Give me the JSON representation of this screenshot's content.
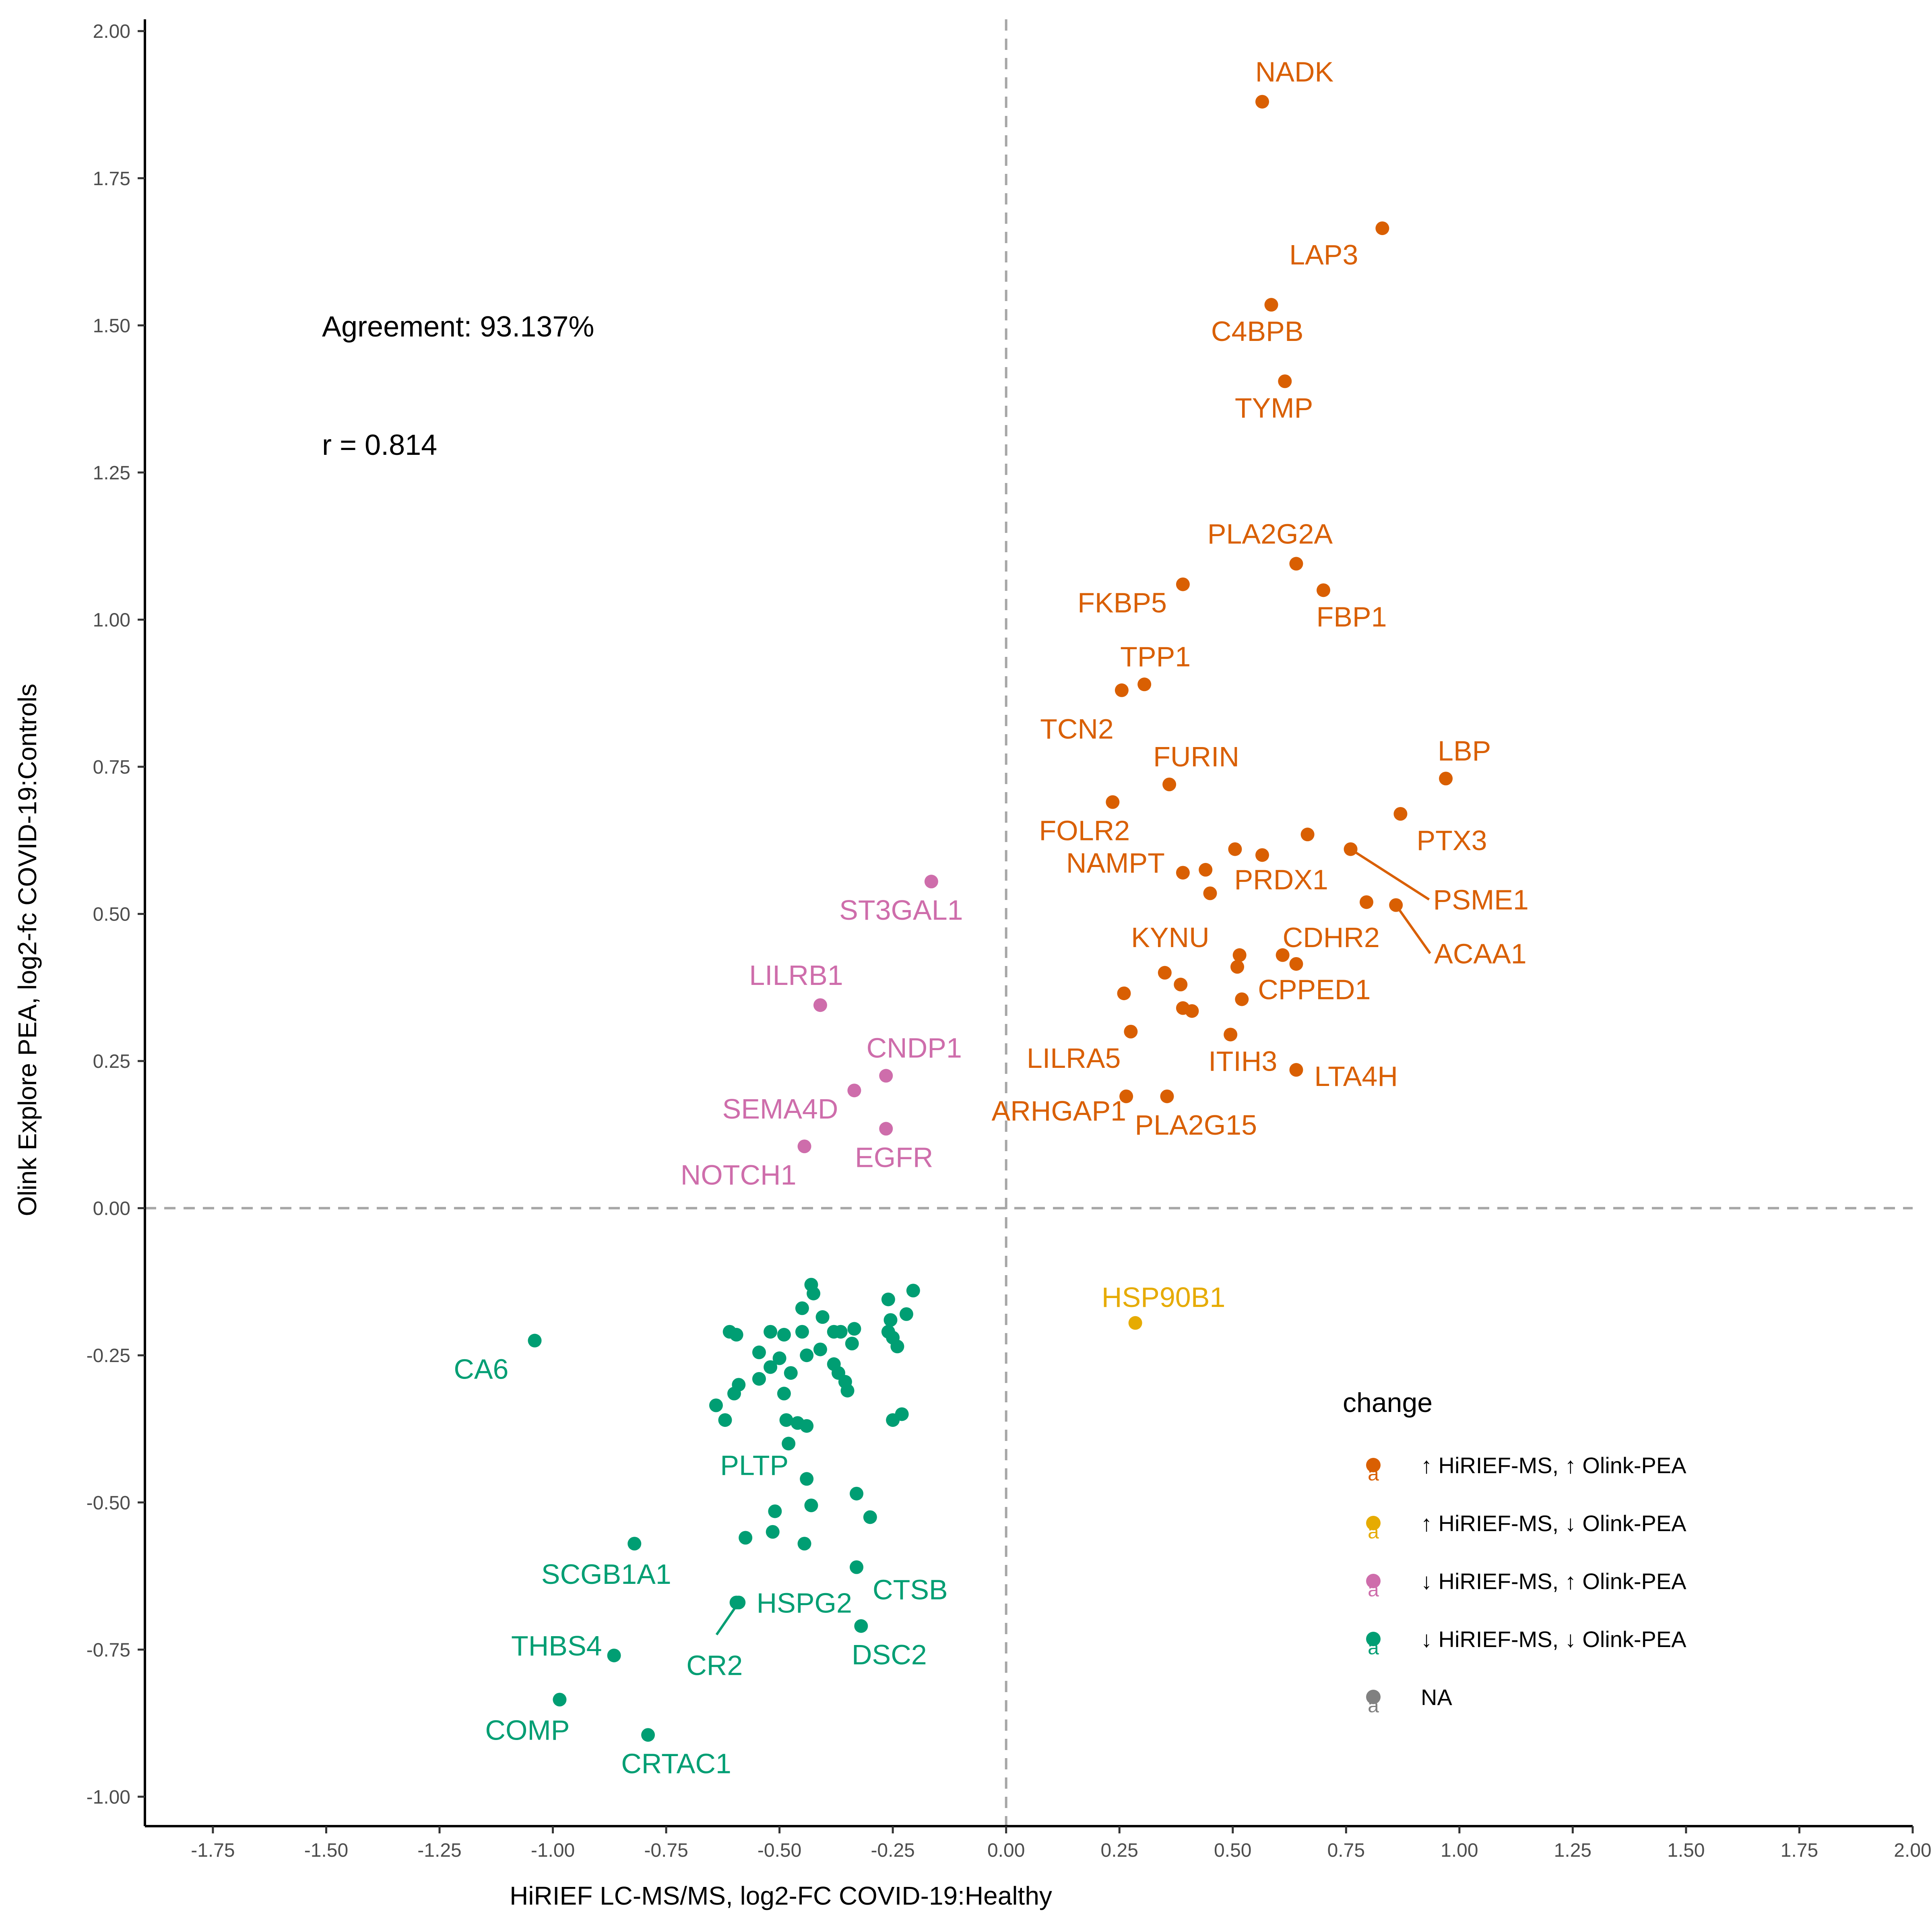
{
  "chart_data": {
    "type": "scatter",
    "xlabel": "HiRIEF LC-MS/MS, log2-FC COVID-19:Healthy",
    "ylabel": "Olink Explore PEA, log2-fc COVID-19:Controls",
    "xlim": [
      -1.9,
      2.0
    ],
    "ylim": [
      -1.05,
      2.02
    ],
    "xticks": [
      "-1.75",
      "-1.50",
      "-1.25",
      "-1.00",
      "-0.75",
      "-0.50",
      "-0.25",
      "0.00",
      "0.25",
      "0.50",
      "0.75",
      "1.00",
      "1.25",
      "1.50",
      "1.75",
      "2.00"
    ],
    "yticks": [
      "-1.00",
      "-0.75",
      "-0.50",
      "-0.25",
      "0.00",
      "0.25",
      "0.50",
      "0.75",
      "1.00",
      "1.25",
      "1.50",
      "1.75",
      "2.00"
    ],
    "reference_lines": {
      "x": 0,
      "y": 0,
      "style": "dashed"
    },
    "annotations": [
      "Agreement: 93.137%",
      "r = 0.814"
    ],
    "grid": false,
    "legend": {
      "title": "change",
      "position": "right",
      "entries": [
        {
          "label": "↑ HiRIEF-MS, ↑ Olink-PEA",
          "color": "#D95F02"
        },
        {
          "label": "↑ HiRIEF-MS, ↓ Olink-PEA",
          "color": "#E6AB02"
        },
        {
          "label": "↓ HiRIEF-MS, ↑ Olink-PEA",
          "color": "#CE6DAB"
        },
        {
          "label": "↓ HiRIEF-MS, ↓ Olink-PEA",
          "color": "#009E73"
        },
        {
          "label": "NA",
          "color": "#808080"
        }
      ]
    },
    "series": [
      {
        "color": "#D95F02",
        "points": [
          {
            "x": 0.565,
            "y": 1.88,
            "label": "NADK"
          },
          {
            "x": 0.83,
            "y": 1.665,
            "label": "LAP3"
          },
          {
            "x": 0.585,
            "y": 1.535,
            "label": "C4BPB"
          },
          {
            "x": 0.615,
            "y": 1.405,
            "label": "TYMP"
          },
          {
            "x": 0.64,
            "y": 1.095,
            "label": "PLA2G2A"
          },
          {
            "x": 0.39,
            "y": 1.06,
            "label": "FKBP5"
          },
          {
            "x": 0.7,
            "y": 1.05,
            "label": "FBP1"
          },
          {
            "x": 0.305,
            "y": 0.89,
            "label": "TPP1"
          },
          {
            "x": 0.255,
            "y": 0.88,
            "label": "TCN2"
          },
          {
            "x": 0.36,
            "y": 0.72,
            "label": "FURIN"
          },
          {
            "x": 0.97,
            "y": 0.73,
            "label": "LBP"
          },
          {
            "x": 0.235,
            "y": 0.69,
            "label": "FOLR2"
          },
          {
            "x": 0.87,
            "y": 0.67,
            "label": "PTX3"
          },
          {
            "x": 0.665,
            "y": 0.635
          },
          {
            "x": 0.505,
            "y": 0.61
          },
          {
            "x": 0.565,
            "y": 0.6
          },
          {
            "x": 0.76,
            "y": 0.61,
            "label": "PSME1"
          },
          {
            "x": 0.39,
            "y": 0.57,
            "label": "NAMPT"
          },
          {
            "x": 0.44,
            "y": 0.575
          },
          {
            "x": 0.45,
            "y": 0.535,
            "label": "PRDX1"
          },
          {
            "x": 0.795,
            "y": 0.52
          },
          {
            "x": 0.86,
            "y": 0.515,
            "label": "ACAA1"
          },
          {
            "x": 0.515,
            "y": 0.43,
            "label": "KYNU"
          },
          {
            "x": 0.51,
            "y": 0.41
          },
          {
            "x": 0.61,
            "y": 0.43,
            "label": "CDHR2"
          },
          {
            "x": 0.64,
            "y": 0.415
          },
          {
            "x": 0.35,
            "y": 0.4
          },
          {
            "x": 0.385,
            "y": 0.38
          },
          {
            "x": 0.26,
            "y": 0.365
          },
          {
            "x": 0.52,
            "y": 0.355,
            "label": "CPPED1"
          },
          {
            "x": 0.39,
            "y": 0.34
          },
          {
            "x": 0.41,
            "y": 0.335
          },
          {
            "x": 0.275,
            "y": 0.3,
            "label": "LILRA5"
          },
          {
            "x": 0.495,
            "y": 0.295,
            "label": "ITIH3"
          },
          {
            "x": 0.64,
            "y": 0.235,
            "label": "LTA4H"
          },
          {
            "x": 0.265,
            "y": 0.19,
            "label": "ARHGAP1"
          },
          {
            "x": 0.355,
            "y": 0.19,
            "label": "PLA2G15"
          }
        ]
      },
      {
        "color": "#E6AB02",
        "points": [
          {
            "x": 0.285,
            "y": -0.195,
            "label": "HSP90B1"
          }
        ]
      },
      {
        "color": "#CE6DAB",
        "points": [
          {
            "x": -0.165,
            "y": 0.555,
            "label": "ST3GAL1"
          },
          {
            "x": -0.41,
            "y": 0.345,
            "label": "LILRB1"
          },
          {
            "x": -0.265,
            "y": 0.225,
            "label": "CNDP1"
          },
          {
            "x": -0.335,
            "y": 0.2,
            "label": "SEMA4D"
          },
          {
            "x": -0.265,
            "y": 0.135,
            "label": "EGFR"
          },
          {
            "x": -0.445,
            "y": 0.105,
            "label": "NOTCH1"
          }
        ]
      },
      {
        "color": "#009E73",
        "points": [
          {
            "x": -1.04,
            "y": -0.225,
            "label": "CA6"
          },
          {
            "x": -0.44,
            "y": -0.46,
            "label": "PLTP"
          },
          {
            "x": -0.33,
            "y": -0.61,
            "label": "CTSB"
          },
          {
            "x": -0.82,
            "y": -0.57,
            "label": "SCGB1A1"
          },
          {
            "x": -0.595,
            "y": -0.67,
            "label": "HSPG2"
          },
          {
            "x": -0.32,
            "y": -0.71,
            "label": "DSC2"
          },
          {
            "x": -0.865,
            "y": -0.76,
            "label": "THBS4"
          },
          {
            "x": -0.59,
            "y": -0.67,
            "label": "CR2"
          },
          {
            "x": -0.985,
            "y": -0.835,
            "label": "COMP"
          },
          {
            "x": -0.79,
            "y": -0.895,
            "label": "CRTAC1"
          },
          {
            "x": -0.43,
            "y": -0.13
          },
          {
            "x": -0.425,
            "y": -0.145
          },
          {
            "x": -0.45,
            "y": -0.17
          },
          {
            "x": -0.405,
            "y": -0.185
          },
          {
            "x": -0.26,
            "y": -0.155
          },
          {
            "x": -0.205,
            "y": -0.14
          },
          {
            "x": -0.22,
            "y": -0.18
          },
          {
            "x": -0.255,
            "y": -0.19
          },
          {
            "x": -0.26,
            "y": -0.21
          },
          {
            "x": -0.25,
            "y": -0.22
          },
          {
            "x": -0.24,
            "y": -0.235
          },
          {
            "x": -0.335,
            "y": -0.205
          },
          {
            "x": -0.365,
            "y": -0.21
          },
          {
            "x": -0.38,
            "y": -0.21
          },
          {
            "x": -0.34,
            "y": -0.23
          },
          {
            "x": -0.61,
            "y": -0.21
          },
          {
            "x": -0.595,
            "y": -0.215
          },
          {
            "x": -0.52,
            "y": -0.21
          },
          {
            "x": -0.49,
            "y": -0.215
          },
          {
            "x": -0.45,
            "y": -0.21
          },
          {
            "x": -0.44,
            "y": -0.25
          },
          {
            "x": -0.41,
            "y": -0.24
          },
          {
            "x": -0.5,
            "y": -0.255
          },
          {
            "x": -0.545,
            "y": -0.245
          },
          {
            "x": -0.52,
            "y": -0.27
          },
          {
            "x": -0.475,
            "y": -0.28
          },
          {
            "x": -0.545,
            "y": -0.29
          },
          {
            "x": -0.59,
            "y": -0.3
          },
          {
            "x": -0.6,
            "y": -0.315
          },
          {
            "x": -0.49,
            "y": -0.315
          },
          {
            "x": -0.38,
            "y": -0.265
          },
          {
            "x": -0.37,
            "y": -0.28
          },
          {
            "x": -0.355,
            "y": -0.295
          },
          {
            "x": -0.35,
            "y": -0.31
          },
          {
            "x": -0.64,
            "y": -0.335
          },
          {
            "x": -0.62,
            "y": -0.36
          },
          {
            "x": -0.485,
            "y": -0.36
          },
          {
            "x": -0.46,
            "y": -0.365
          },
          {
            "x": -0.44,
            "y": -0.37
          },
          {
            "x": -0.48,
            "y": -0.4
          },
          {
            "x": -0.23,
            "y": -0.35
          },
          {
            "x": -0.25,
            "y": -0.36
          },
          {
            "x": -0.33,
            "y": -0.485
          },
          {
            "x": -0.3,
            "y": -0.525
          },
          {
            "x": -0.51,
            "y": -0.515
          },
          {
            "x": -0.43,
            "y": -0.505
          },
          {
            "x": -0.575,
            "y": -0.56
          },
          {
            "x": -0.515,
            "y": -0.55
          },
          {
            "x": -0.445,
            "y": -0.57
          }
        ]
      }
    ]
  }
}
